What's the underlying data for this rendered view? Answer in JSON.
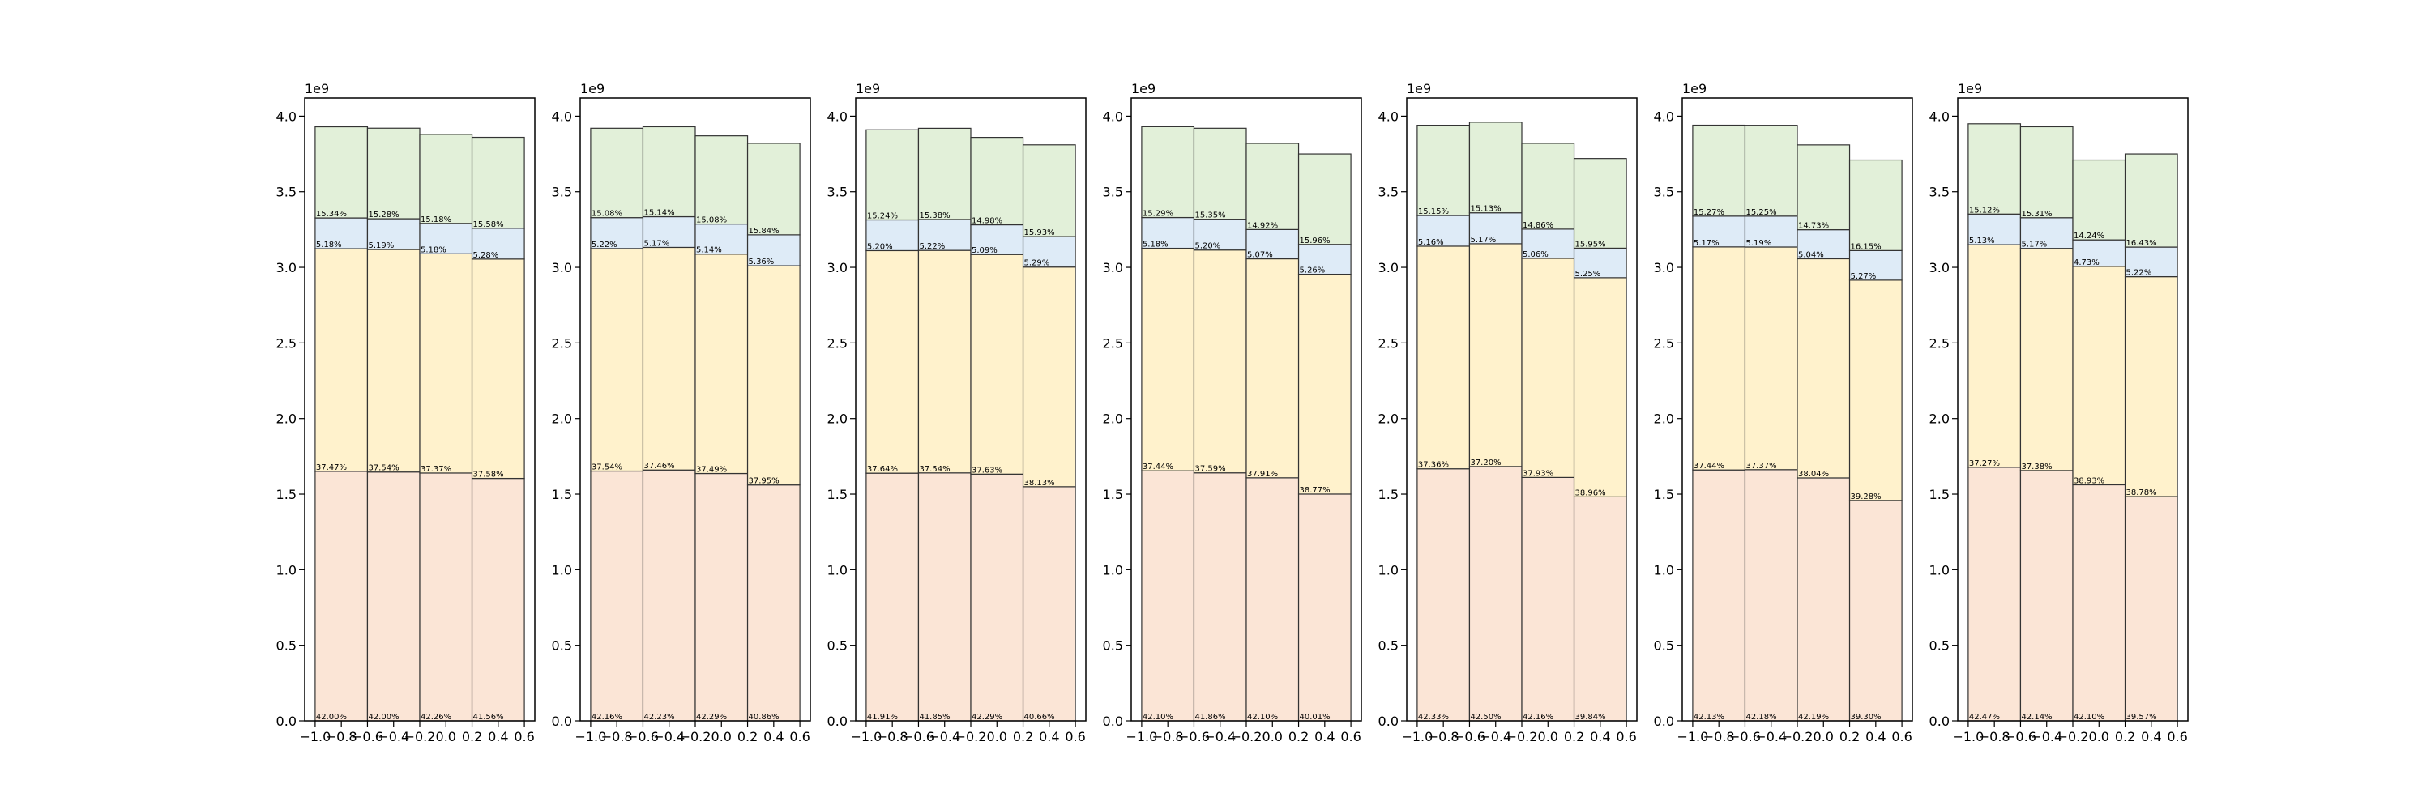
{
  "chart_data": {
    "type": "bar",
    "stacked": true,
    "subplot_count": 7,
    "x_positions": [
      -1.0,
      -0.6,
      -0.2,
      0.2
    ],
    "bar_width": 0.4,
    "xlim": [
      -1.08,
      0.68
    ],
    "ylim": [
      0,
      4.12
    ],
    "y_scale_label": "1e9",
    "x_ticks": [
      -1.0,
      -0.8,
      -0.6,
      -0.4,
      -0.2,
      0.0,
      0.2,
      0.4,
      0.6
    ],
    "x_tick_labels": [
      "−1.0",
      "−0.8",
      "−0.6",
      "−0.4",
      "−0.2",
      "0.0",
      "0.2",
      "0.4",
      "0.6"
    ],
    "y_ticks": [
      0,
      0.5,
      1.0,
      1.5,
      2.0,
      2.5,
      3.0,
      3.5,
      4.0
    ],
    "y_tick_labels": [
      "0.0",
      "0.5",
      "1.0",
      "1.5",
      "2.0",
      "2.5",
      "3.0",
      "3.5",
      "4.0"
    ],
    "segment_colors": [
      "#fbe5d6",
      "#fff2cc",
      "#deebf7",
      "#e2f0d9"
    ],
    "grid": false,
    "subplots": [
      {
        "totals": [
          3.93,
          3.92,
          3.88,
          3.86
        ],
        "percents": [
          [
            "42.00%",
            "37.47%",
            "5.18%",
            "15.34%"
          ],
          [
            "42.00%",
            "37.54%",
            "5.19%",
            "15.28%"
          ],
          [
            "42.26%",
            "37.37%",
            "5.18%",
            "15.18%"
          ],
          [
            "41.56%",
            "37.58%",
            "5.28%",
            "15.58%"
          ]
        ]
      },
      {
        "totals": [
          3.92,
          3.93,
          3.87,
          3.82
        ],
        "percents": [
          [
            "42.16%",
            "37.54%",
            "5.22%",
            "15.08%"
          ],
          [
            "42.23%",
            "37.46%",
            "5.17%",
            "15.14%"
          ],
          [
            "42.29%",
            "37.49%",
            "5.14%",
            "15.08%"
          ],
          [
            "40.86%",
            "37.95%",
            "5.36%",
            "15.84%"
          ]
        ]
      },
      {
        "totals": [
          3.91,
          3.92,
          3.86,
          3.81
        ],
        "percents": [
          [
            "41.91%",
            "37.64%",
            "5.20%",
            "15.24%"
          ],
          [
            "41.85%",
            "37.54%",
            "5.22%",
            "15.38%"
          ],
          [
            "42.29%",
            "37.63%",
            "5.09%",
            "14.98%"
          ],
          [
            "40.66%",
            "38.13%",
            "5.29%",
            "15.93%"
          ]
        ]
      },
      {
        "totals": [
          3.93,
          3.92,
          3.82,
          3.75
        ],
        "percents": [
          [
            "42.10%",
            "37.44%",
            "5.18%",
            "15.29%"
          ],
          [
            "41.86%",
            "37.59%",
            "5.20%",
            "15.35%"
          ],
          [
            "42.10%",
            "37.91%",
            "5.07%",
            "14.92%"
          ],
          [
            "40.01%",
            "38.77%",
            "5.26%",
            "15.96%"
          ]
        ]
      },
      {
        "totals": [
          3.94,
          3.96,
          3.82,
          3.72
        ],
        "percents": [
          [
            "42.33%",
            "37.36%",
            "5.16%",
            "15.15%"
          ],
          [
            "42.50%",
            "37.20%",
            "5.17%",
            "15.13%"
          ],
          [
            "42.16%",
            "37.93%",
            "5.06%",
            "14.86%"
          ],
          [
            "39.84%",
            "38.96%",
            "5.25%",
            "15.95%"
          ]
        ]
      },
      {
        "totals": [
          3.94,
          3.94,
          3.81,
          3.71
        ],
        "percents": [
          [
            "42.13%",
            "37.44%",
            "5.17%",
            "15.27%"
          ],
          [
            "42.18%",
            "37.37%",
            "5.19%",
            "15.25%"
          ],
          [
            "42.19%",
            "38.04%",
            "5.04%",
            "14.73%"
          ],
          [
            "39.30%",
            "39.28%",
            "5.27%",
            "16.15%"
          ]
        ]
      },
      {
        "totals": [
          3.95,
          3.93,
          3.71,
          3.75
        ],
        "percents": [
          [
            "42.47%",
            "37.27%",
            "5.13%",
            "15.12%"
          ],
          [
            "42.14%",
            "37.38%",
            "5.17%",
            "15.31%"
          ],
          [
            "42.10%",
            "38.93%",
            "4.73%",
            "14.24%"
          ],
          [
            "39.57%",
            "38.78%",
            "5.22%",
            "16.43%"
          ]
        ]
      }
    ]
  }
}
